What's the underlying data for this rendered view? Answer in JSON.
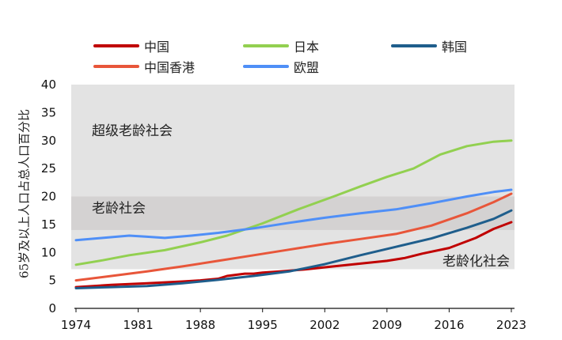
{
  "chart_data": {
    "type": "line",
    "ylabel": "65岁及以上人口占总人口百分比",
    "xlabel": "",
    "title": "",
    "xlim": [
      1974,
      2023
    ],
    "ylim": [
      0,
      40
    ],
    "x_ticks": [
      1974,
      1981,
      1988,
      1995,
      2002,
      2009,
      2016,
      2023
    ],
    "y_ticks": [
      0,
      5,
      10,
      15,
      20,
      25,
      30,
      35,
      40
    ],
    "grid": false,
    "legend_position": "top",
    "bands": [
      {
        "label": "超级老龄社会",
        "range": [
          20,
          40
        ],
        "color": "#e3e3e3"
      },
      {
        "label": "老龄社会",
        "range": [
          14,
          20
        ],
        "color": "#d4d2d2"
      },
      {
        "label": "老龄化社会",
        "range": [
          7,
          14
        ],
        "color": "#e3e3e3"
      }
    ],
    "series": [
      {
        "name": "中国",
        "color": "#c00000",
        "x": [
          1974,
          1978,
          1982,
          1986,
          1988,
          1990,
          1991,
          1993,
          1994,
          1995,
          1997,
          2000,
          2003,
          2006,
          2009,
          2011,
          2013,
          2016,
          2019,
          2021,
          2023
        ],
        "y": [
          3.8,
          4.2,
          4.5,
          4.8,
          5.0,
          5.3,
          5.8,
          6.2,
          6.2,
          6.4,
          6.6,
          7.0,
          7.5,
          8.0,
          8.5,
          9.0,
          9.8,
          10.8,
          12.6,
          14.2,
          15.4
        ]
      },
      {
        "name": "日本",
        "color": "#92d050",
        "x": [
          1974,
          1977,
          1980,
          1984,
          1988,
          1991,
          1995,
          1999,
          2003,
          2006,
          2009,
          2012,
          2015,
          2018,
          2021,
          2023
        ],
        "y": [
          7.8,
          8.6,
          9.5,
          10.4,
          11.8,
          13.0,
          15.2,
          17.7,
          20.0,
          21.8,
          23.5,
          25.0,
          27.5,
          29.0,
          29.8,
          30.0
        ]
      },
      {
        "name": "韩国",
        "color": "#1f5e8c",
        "x": [
          1974,
          1978,
          1982,
          1986,
          1990,
          1994,
          1998,
          2002,
          2006,
          2010,
          2014,
          2018,
          2021,
          2023
        ],
        "y": [
          3.6,
          3.8,
          4.0,
          4.5,
          5.1,
          5.8,
          6.6,
          7.9,
          9.5,
          11.0,
          12.5,
          14.4,
          16.0,
          17.5
        ]
      },
      {
        "name": "中国香港",
        "color": "#e8563a",
        "x": [
          1974,
          1978,
          1982,
          1986,
          1990,
          1994,
          1998,
          2002,
          2006,
          2010,
          2014,
          2018,
          2021,
          2023
        ],
        "y": [
          5.0,
          5.8,
          6.6,
          7.5,
          8.5,
          9.5,
          10.5,
          11.5,
          12.4,
          13.3,
          14.8,
          17.0,
          19.0,
          20.5
        ]
      },
      {
        "name": "欧盟",
        "color": "#4f8ff7",
        "x": [
          1974,
          1977,
          1980,
          1982,
          1984,
          1987,
          1990,
          1994,
          1998,
          2002,
          2006,
          2010,
          2014,
          2018,
          2021,
          2023
        ],
        "y": [
          12.2,
          12.6,
          13.0,
          12.8,
          12.6,
          13.0,
          13.5,
          14.3,
          15.3,
          16.2,
          17.0,
          17.7,
          18.8,
          20.0,
          20.8,
          21.2
        ]
      }
    ]
  }
}
